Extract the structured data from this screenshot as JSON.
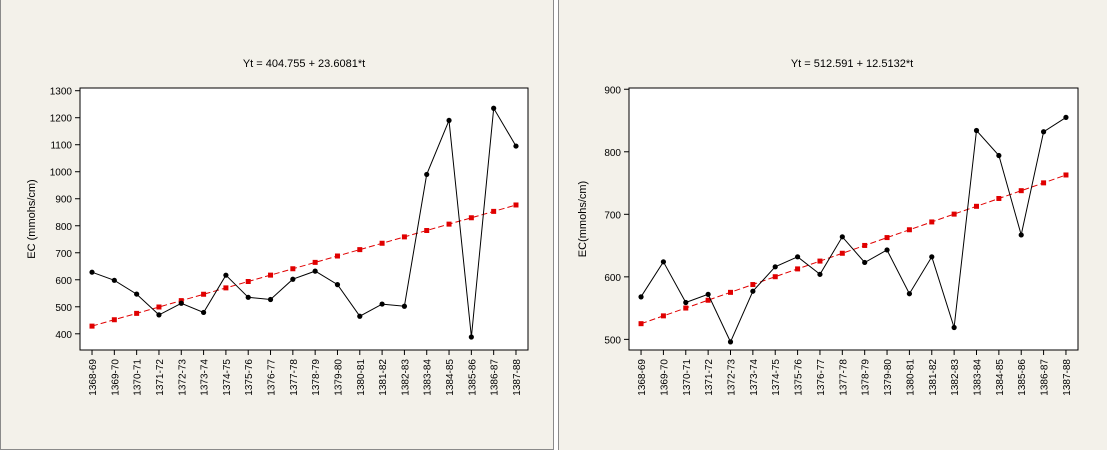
{
  "chart_data": [
    {
      "type": "line",
      "title": "Yt = 404.755 + 23.6081*t",
      "ylabel": "EC (mmohs/cm)",
      "xlabel": "",
      "categories": [
        "1368-69",
        "1369-70",
        "1370-71",
        "1371-72",
        "1372-73",
        "1373-74",
        "1374-75",
        "1375-76",
        "1376-77",
        "1377-78",
        "1378-79",
        "1379-80",
        "1380-81",
        "1381-82",
        "1382-83",
        "1383-84",
        "1384-85",
        "1385-86",
        "1386-87",
        "1387-88"
      ],
      "yticks": [
        400,
        500,
        600,
        700,
        800,
        900,
        1000,
        1100,
        1200,
        1300
      ],
      "ylim": [
        340,
        1310
      ],
      "series": [
        {
          "values": [
            628,
            598,
            547,
            470,
            513,
            479,
            617,
            535,
            527,
            602,
            632,
            582,
            465,
            510,
            502,
            990,
            1190,
            388,
            1235,
            1095
          ],
          "color": "#000000",
          "style": "solid",
          "marker": "circle"
        },
        {
          "values": [
            428.4,
            452.0,
            475.6,
            499.2,
            522.8,
            546.4,
            570.0,
            593.6,
            617.2,
            640.8,
            664.4,
            688.0,
            711.6,
            735.2,
            758.8,
            782.4,
            806.0,
            829.6,
            853.2,
            876.9
          ],
          "color": "#e00000",
          "style": "dashed",
          "marker": "square"
        }
      ]
    },
    {
      "type": "line",
      "title": "Yt = 512.591 + 12.5132*t",
      "ylabel": "EC(mmohs/cm)",
      "xlabel": "",
      "categories": [
        "1368-69",
        "1369-70",
        "1370-71",
        "1371-72",
        "1372-73",
        "1373-74",
        "1374-75",
        "1375-76",
        "1376-77",
        "1377-78",
        "1378-79",
        "1379-80",
        "1380-81",
        "1381-82",
        "1382-83",
        "1383-84",
        "1384-85",
        "1385-86",
        "1386-87",
        "1387-88"
      ],
      "yticks": [
        500,
        600,
        700,
        800,
        900
      ],
      "ylim": [
        483,
        902
      ],
      "series": [
        {
          "values": [
            568,
            624,
            559,
            572,
            496,
            577,
            616,
            632,
            604,
            664,
            623,
            643,
            573,
            632,
            519,
            834,
            794,
            667,
            832,
            855
          ],
          "color": "#000000",
          "style": "solid",
          "marker": "circle"
        },
        {
          "values": [
            525.1,
            537.6,
            550.1,
            562.6,
            575.2,
            587.7,
            600.2,
            612.7,
            625.2,
            637.7,
            650.2,
            662.8,
            675.3,
            687.8,
            700.3,
            712.8,
            725.3,
            737.8,
            750.3,
            762.9
          ],
          "color": "#e00000",
          "style": "dashed",
          "marker": "square"
        }
      ]
    }
  ]
}
